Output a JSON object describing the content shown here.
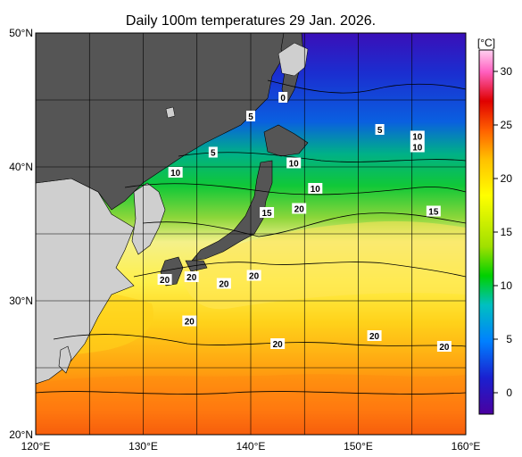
{
  "title": "Daily 100m temperatures 29 Jan. 2026.",
  "map": {
    "lat_range": [
      20,
      50
    ],
    "lon_range": [
      120,
      160
    ],
    "lat_ticks": [
      "20°N",
      "30°N",
      "40°N",
      "50°N"
    ],
    "lon_ticks": [
      "120°E",
      "130°E",
      "140°E",
      "150°E",
      "160°E"
    ],
    "grid_step_degrees": 5,
    "colors": {
      "land_dark": "#555555",
      "land_light": "#cfcfcf",
      "grid": "#000000"
    }
  },
  "colorbar": {
    "unit": "[°C]",
    "range": [
      -2,
      32
    ],
    "ticks": [
      "0",
      "5",
      "10",
      "15",
      "20",
      "25",
      "30"
    ],
    "stops": [
      "#4a00a0",
      "#1a20d0",
      "#0080ff",
      "#00c0c0",
      "#00d000",
      "#a0e000",
      "#ffff00",
      "#ffc000",
      "#ff6000",
      "#e00000",
      "#ff60c0",
      "#ffd0f0"
    ]
  },
  "contour_labels": [
    {
      "text": "0",
      "lon": 143.0,
      "lat": 45.2
    },
    {
      "text": "5",
      "lon": 140.0,
      "lat": 43.8
    },
    {
      "text": "5",
      "lon": 136.5,
      "lat": 41.1
    },
    {
      "text": "5",
      "lon": 152.0,
      "lat": 42.8
    },
    {
      "text": "10",
      "lon": 133.0,
      "lat": 39.6
    },
    {
      "text": "10",
      "lon": 144.0,
      "lat": 40.3
    },
    {
      "text": "10",
      "lon": 146.0,
      "lat": 38.4
    },
    {
      "text": "10",
      "lon": 155.5,
      "lat": 42.3
    },
    {
      "text": "10",
      "lon": 155.5,
      "lat": 41.5
    },
    {
      "text": "15",
      "lon": 141.5,
      "lat": 36.6
    },
    {
      "text": "15",
      "lon": 157.0,
      "lat": 36.7
    },
    {
      "text": "20",
      "lon": 144.5,
      "lat": 36.9
    },
    {
      "text": "20",
      "lon": 132.0,
      "lat": 31.6
    },
    {
      "text": "20",
      "lon": 137.5,
      "lat": 31.3
    },
    {
      "text": "20",
      "lon": 134.5,
      "lat": 31.8
    },
    {
      "text": "20",
      "lon": 140.3,
      "lat": 31.9
    },
    {
      "text": "20",
      "lon": 134.3,
      "lat": 28.5
    },
    {
      "text": "20",
      "lon": 142.5,
      "lat": 26.8
    },
    {
      "text": "20",
      "lon": 151.5,
      "lat": 27.4
    },
    {
      "text": "20",
      "lon": 158.0,
      "lat": 26.6
    }
  ]
}
